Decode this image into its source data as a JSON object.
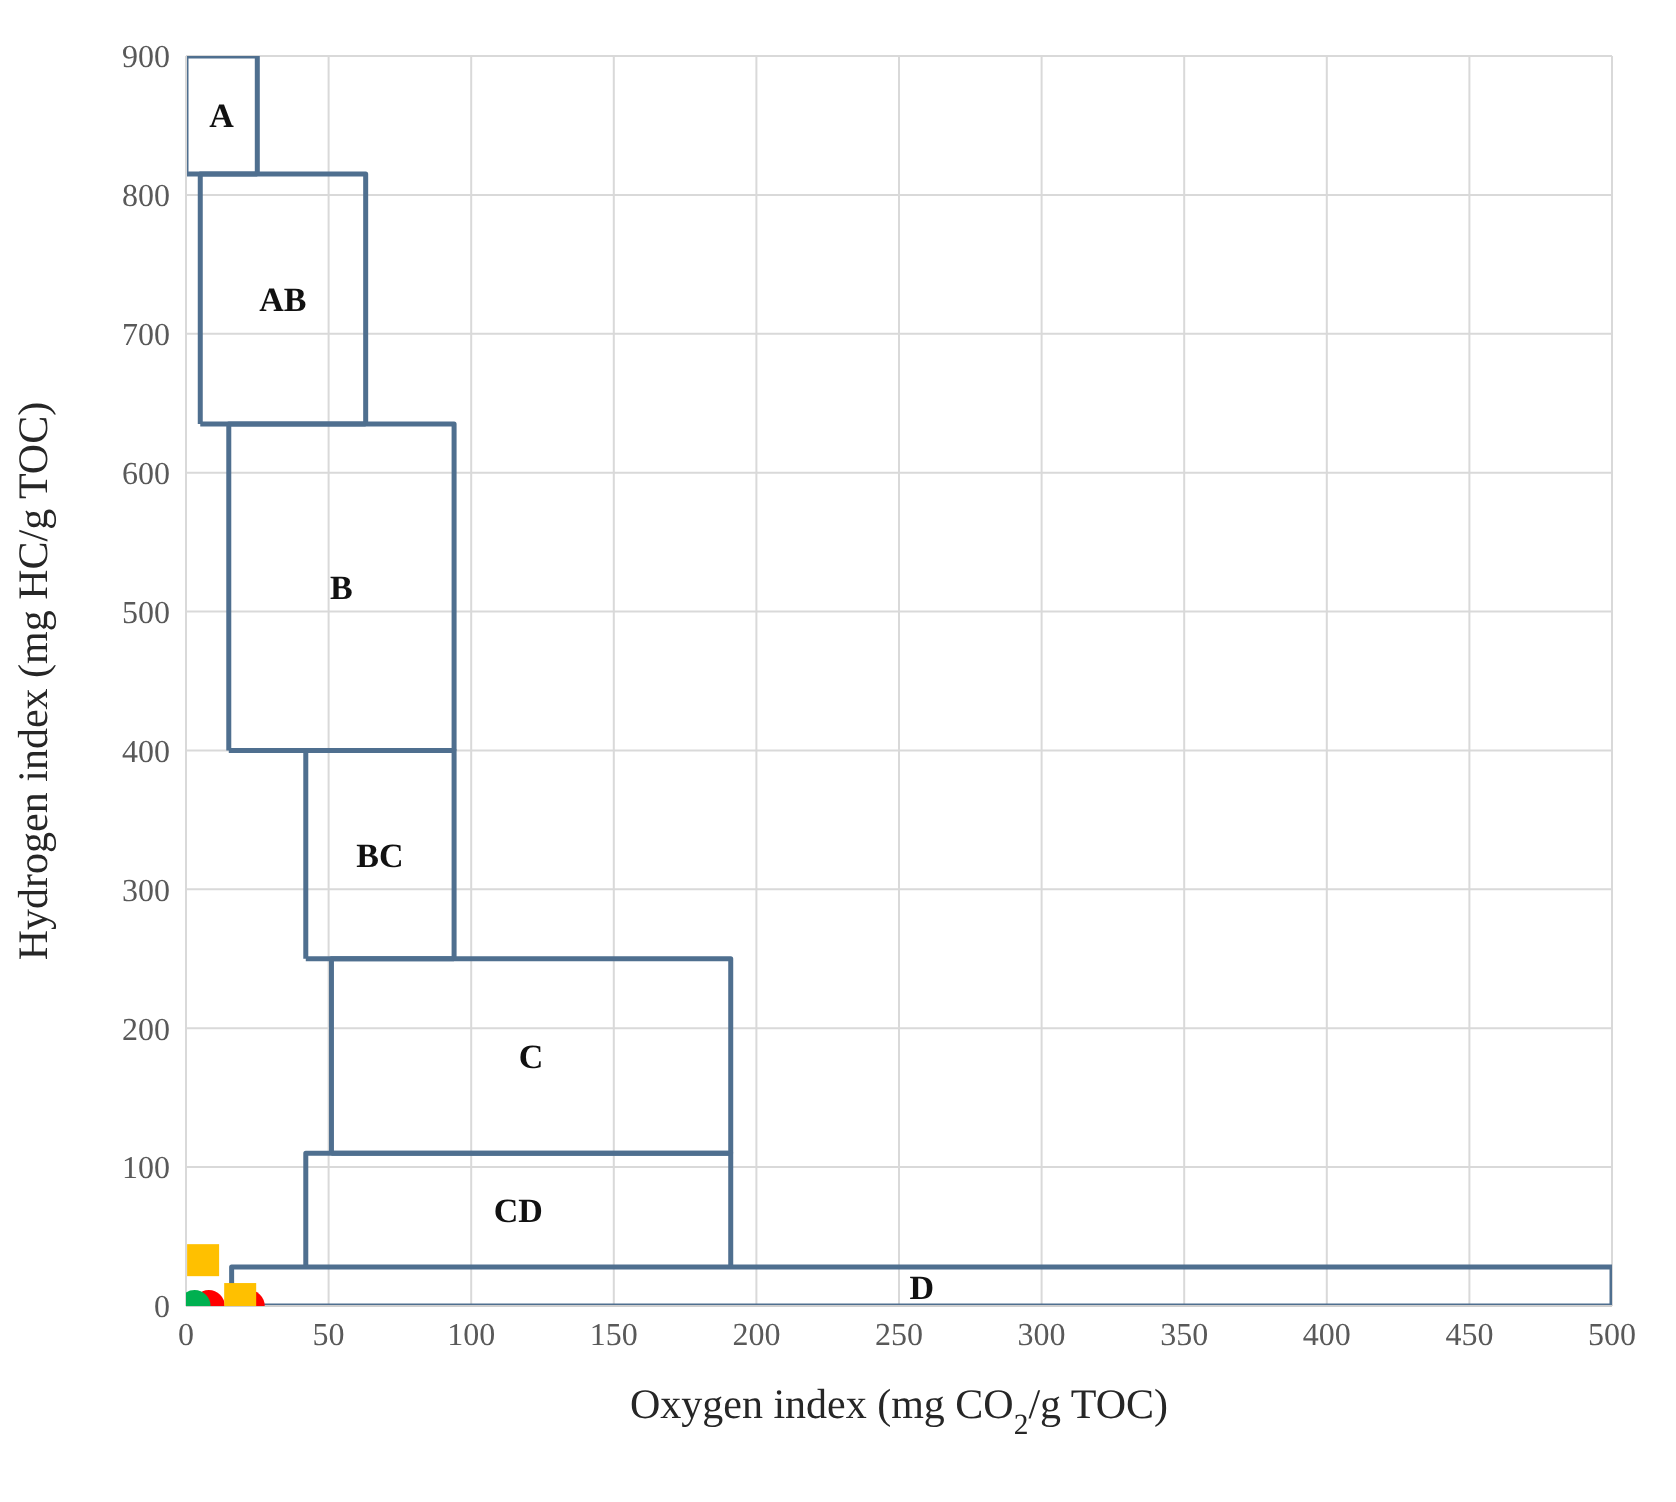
{
  "chart_data": {
    "type": "scatter",
    "xlabel": "Oxygen index (mg CO$_{2}$/g TOC)",
    "ylabel": "Hydrogen index (mg HC/g TOC)",
    "xlim": [
      0,
      500
    ],
    "ylim": [
      0,
      900
    ],
    "xticks": [
      0,
      50,
      100,
      150,
      200,
      250,
      300,
      350,
      400,
      450,
      500
    ],
    "yticks": [
      0,
      100,
      200,
      300,
      400,
      500,
      600,
      700,
      800,
      900
    ],
    "grid": true,
    "legend": false,
    "series": [
      {
        "type": "line",
        "name": "A",
        "color": "#4f6f8f",
        "marker": "none",
        "x": [
          0,
          0,
          25,
          25
        ],
        "values": [
          815,
          900,
          900,
          815
        ]
      },
      {
        "type": "line",
        "name": "AB",
        "color": "#4f6f8f",
        "marker": "none",
        "x": [
          5,
          5,
          63,
          63
        ],
        "values": [
          635,
          815,
          815,
          635
        ]
      },
      {
        "type": "line",
        "name": "B",
        "color": "#4f6f8f",
        "marker": "none",
        "x": [
          15,
          15,
          94,
          94
        ],
        "values": [
          400,
          635,
          635,
          400
        ]
      },
      {
        "type": "line",
        "name": "BC",
        "color": "#4f6f8f",
        "marker": "none",
        "x": [
          42,
          42,
          94,
          94
        ],
        "values": [
          250,
          400,
          400,
          250
        ]
      },
      {
        "type": "line",
        "name": "C",
        "color": "#4f6f8f",
        "marker": "none",
        "x": [
          51,
          51,
          191,
          191
        ],
        "values": [
          110,
          250,
          250,
          110
        ]
      },
      {
        "type": "line",
        "name": "CD",
        "color": "#4f6f8f",
        "marker": "none",
        "x": [
          42,
          42,
          191,
          191
        ],
        "values": [
          28,
          110,
          110,
          28
        ]
      },
      {
        "type": "line",
        "name": "D",
        "color": "#4f6f8f",
        "marker": "none",
        "x": [
          16,
          16,
          500,
          500
        ],
        "values": [
          0,
          28,
          28,
          0
        ]
      },
      {
        "type": "line",
        "color": "#4f6f8f",
        "marker": "none",
        "x": [
          0,
          25
        ],
        "values": [
          815,
          815
        ]
      },
      {
        "type": "line",
        "color": "#4f6f8f",
        "marker": "none",
        "x": [
          5,
          63
        ],
        "values": [
          635,
          635
        ]
      },
      {
        "type": "line",
        "color": "#4f6f8f",
        "marker": "none",
        "x": [
          15,
          94
        ],
        "values": [
          400,
          400
        ]
      },
      {
        "type": "line",
        "color": "#4f6f8f",
        "marker": "none",
        "x": [
          42,
          94
        ],
        "values": [
          250,
          250
        ]
      },
      {
        "type": "line",
        "color": "#4f6f8f",
        "marker": "none",
        "x": [
          51,
          191
        ],
        "values": [
          110,
          110
        ]
      },
      {
        "type": "line",
        "color": "#4f6f8f",
        "marker": "none",
        "x": [
          16,
          500
        ],
        "values": [
          0,
          0
        ]
      },
      {
        "color": "#ff0000",
        "marker": "circle",
        "x": [
          8,
          22
        ],
        "values": [
          0,
          0
        ]
      },
      {
        "color": "#ffc000",
        "marker": "square",
        "x": [
          6,
          19
        ],
        "values": [
          33,
          5
        ]
      },
      {
        "color": "#00b050",
        "marker": "circle",
        "x": [
          3
        ],
        "values": [
          0
        ]
      }
    ]
  }
}
